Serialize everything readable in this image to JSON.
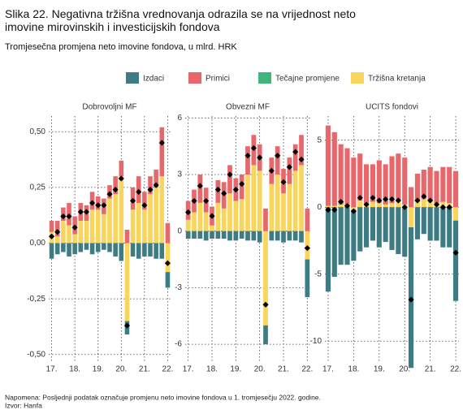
{
  "title": "Slika 22. Negativna tržišna vrednovanja odrazila se na vrijednost neto imovine mirovinskih i investicijskih fondova",
  "subtitle": "Tromjesečna promjena neto imovine fondova, u mlrd. HRK",
  "note": "Napomena: Posljednji podatak označuje promjenu neto imovine fondova u 1. tromjesečju 2022. godine.",
  "source": "Izvor: Hanfa",
  "chart_data": [
    {
      "type": "bar",
      "title": "Dobrovoljni MF",
      "categories": [
        "17.",
        null,
        null,
        null,
        "18.",
        null,
        null,
        null,
        "19.",
        null,
        null,
        null,
        "20.",
        null,
        null,
        null,
        "21.",
        null,
        null,
        null,
        "22."
      ],
      "series": [
        {
          "name": "Izdaci",
          "color": "#3d7c84",
          "values": [
            -0.07,
            -0.05,
            -0.04,
            -0.06,
            -0.05,
            -0.04,
            -0.03,
            -0.05,
            -0.04,
            -0.03,
            -0.04,
            -0.06,
            -0.08,
            -0.06,
            -0.06,
            -0.07,
            -0.06,
            -0.06,
            -0.07,
            -0.07,
            -0.07
          ]
        },
        {
          "name": "Primici",
          "color": "#e8676b",
          "values": [
            0.05,
            0.07,
            0.06,
            0.1,
            0.08,
            0.08,
            0.07,
            0.08,
            0.06,
            0.07,
            0.06,
            0.08,
            0.07,
            0.06,
            0.1,
            0.12,
            0.08,
            0.08,
            0.08,
            0.22,
            0.09
          ]
        },
        {
          "name": "Tečajne promjene",
          "color": "#3fb57a",
          "values": [
            0,
            0,
            0,
            0,
            0,
            0,
            0,
            0,
            0,
            0,
            0,
            0,
            0,
            0,
            0,
            0,
            0,
            0,
            0,
            0,
            0
          ]
        },
        {
          "name": "Tržišna kretanja",
          "color": "#f9d55b",
          "values": [
            0.05,
            0.03,
            0.1,
            0.08,
            0.04,
            0.1,
            0.1,
            0.15,
            0.15,
            0.13,
            0.2,
            0.22,
            0.3,
            -0.35,
            0.15,
            0.18,
            0.15,
            0.22,
            0.25,
            0.3,
            -0.13
          ]
        }
      ],
      "markers": [
        0.03,
        0.05,
        0.12,
        0.12,
        0.07,
        0.14,
        0.14,
        0.18,
        0.17,
        0.17,
        0.22,
        0.24,
        0.29,
        -0.37,
        0.19,
        0.23,
        0.17,
        0.24,
        0.26,
        0.45,
        -0.09
      ],
      "ylim": [
        -0.53,
        0.57
      ],
      "yticks": [
        {
          "value": -0.5,
          "label": "-0,50"
        },
        {
          "value": -0.25,
          "label": "-0,25"
        },
        {
          "value": 0,
          "label": "0,00"
        },
        {
          "value": 0.25,
          "label": "0,25"
        },
        {
          "value": 0.5,
          "label": "0,50"
        }
      ],
      "grid": true
    },
    {
      "type": "bar",
      "title": "Obvezni MF",
      "categories": [
        "17.",
        null,
        null,
        null,
        "18.",
        null,
        null,
        null,
        "19.",
        null,
        null,
        null,
        "20.",
        null,
        null,
        null,
        "21.",
        null,
        null,
        null,
        "22."
      ],
      "series": [
        {
          "name": "Izdaci",
          "color": "#3d7c84",
          "values": [
            -0.4,
            -0.4,
            -0.4,
            -0.5,
            -0.4,
            -0.4,
            -0.4,
            -0.5,
            -0.5,
            -0.4,
            -0.5,
            -0.5,
            -0.6,
            -1.0,
            -0.5,
            -0.5,
            -0.6,
            -0.5,
            -0.5,
            -0.6,
            -2.0
          ]
        },
        {
          "name": "Primici",
          "color": "#e8676b",
          "values": [
            1.0,
            1.2,
            1.5,
            1.3,
            1.0,
            1.2,
            1.4,
            1.5,
            1.2,
            1.3,
            1.5,
            1.6,
            1.4,
            1.2,
            1.4,
            1.5,
            1.3,
            1.4,
            1.4,
            1.6,
            1.2
          ]
        },
        {
          "name": "Tečajne promjene",
          "color": "#3fb57a",
          "values": [
            0,
            0,
            0,
            0,
            0,
            0,
            0,
            0,
            0,
            0,
            0,
            0,
            0,
            0,
            0,
            0,
            0,
            0,
            0,
            0,
            0
          ]
        },
        {
          "name": "Tržišna kretanja",
          "color": "#f9d55b",
          "values": [
            0.6,
            1.0,
            1.5,
            1.0,
            0.3,
            1.5,
            1.2,
            2.0,
            1.6,
            1.7,
            3.0,
            3.5,
            3.2,
            -5.0,
            2.5,
            3.0,
            2.0,
            2.5,
            3.2,
            3.5,
            -1.5
          ]
        }
      ],
      "markers": [
        1.0,
        1.6,
        2.4,
        1.6,
        0.8,
        2.2,
        2.0,
        3.0,
        2.2,
        2.5,
        4.0,
        4.4,
        3.9,
        -3.9,
        3.2,
        4.0,
        2.6,
        3.4,
        4.2,
        3.8,
        -0.9
      ],
      "ylim": [
        -6.9,
        6.1
      ],
      "yticks": [
        -6,
        -3,
        0,
        3,
        6
      ],
      "grid": true
    },
    {
      "type": "bar",
      "title": "UCITS fondovi",
      "categories": [
        "17.",
        null,
        null,
        null,
        "18.",
        null,
        null,
        null,
        "19.",
        null,
        null,
        null,
        "20.",
        null,
        null,
        null,
        "21.",
        null,
        null,
        null,
        "22."
      ],
      "series": [
        {
          "name": "Izdaci",
          "color": "#3d7c84",
          "values": [
            -6.3,
            -5.2,
            -4.3,
            -4.3,
            -3.8,
            -3.3,
            -3.0,
            -2.5,
            -3.0,
            -2.6,
            -3.2,
            -3.5,
            -3.7,
            -10.5,
            -2.4,
            -2.0,
            -2.5,
            -2.5,
            -3.0,
            -3.0,
            -6.0
          ]
        },
        {
          "name": "Primici",
          "color": "#e8676b",
          "values": [
            6.0,
            5.5,
            4.5,
            4.3,
            3.7,
            3.5,
            3.0,
            2.8,
            3.2,
            3.0,
            3.5,
            3.5,
            3.5,
            1.5,
            2.0,
            2.2,
            2.5,
            2.4,
            2.6,
            2.7,
            2.7
          ]
        },
        {
          "name": "Tečajne promjene",
          "color": "#3fb57a",
          "values": [
            0,
            0,
            0,
            0,
            0,
            0,
            0,
            0,
            0,
            0,
            0,
            0,
            0,
            0,
            0,
            0,
            0,
            0,
            0,
            0,
            0
          ]
        },
        {
          "name": "Tržišna kretanja",
          "color": "#f9d55b",
          "values": [
            0.1,
            0.1,
            0.2,
            0.1,
            -0.2,
            0.5,
            0.2,
            0.4,
            0.3,
            0.2,
            0.3,
            0.5,
            0.2,
            -1.5,
            0.5,
            0.6,
            0.5,
            0.3,
            0.4,
            0.3,
            -1.0
          ]
        }
      ],
      "markers": [
        -0.2,
        -0.2,
        0.4,
        0.1,
        -0.3,
        0.7,
        0.2,
        0.7,
        0.5,
        0.6,
        0.6,
        0.5,
        0.0,
        -6.9,
        0.5,
        0.8,
        0.5,
        0.2,
        0.0,
        0.0,
        -3.4
      ],
      "ylim": [
        -11.5,
        6.8
      ],
      "yticks": [
        -10,
        -5,
        0,
        5
      ],
      "grid": true
    }
  ]
}
